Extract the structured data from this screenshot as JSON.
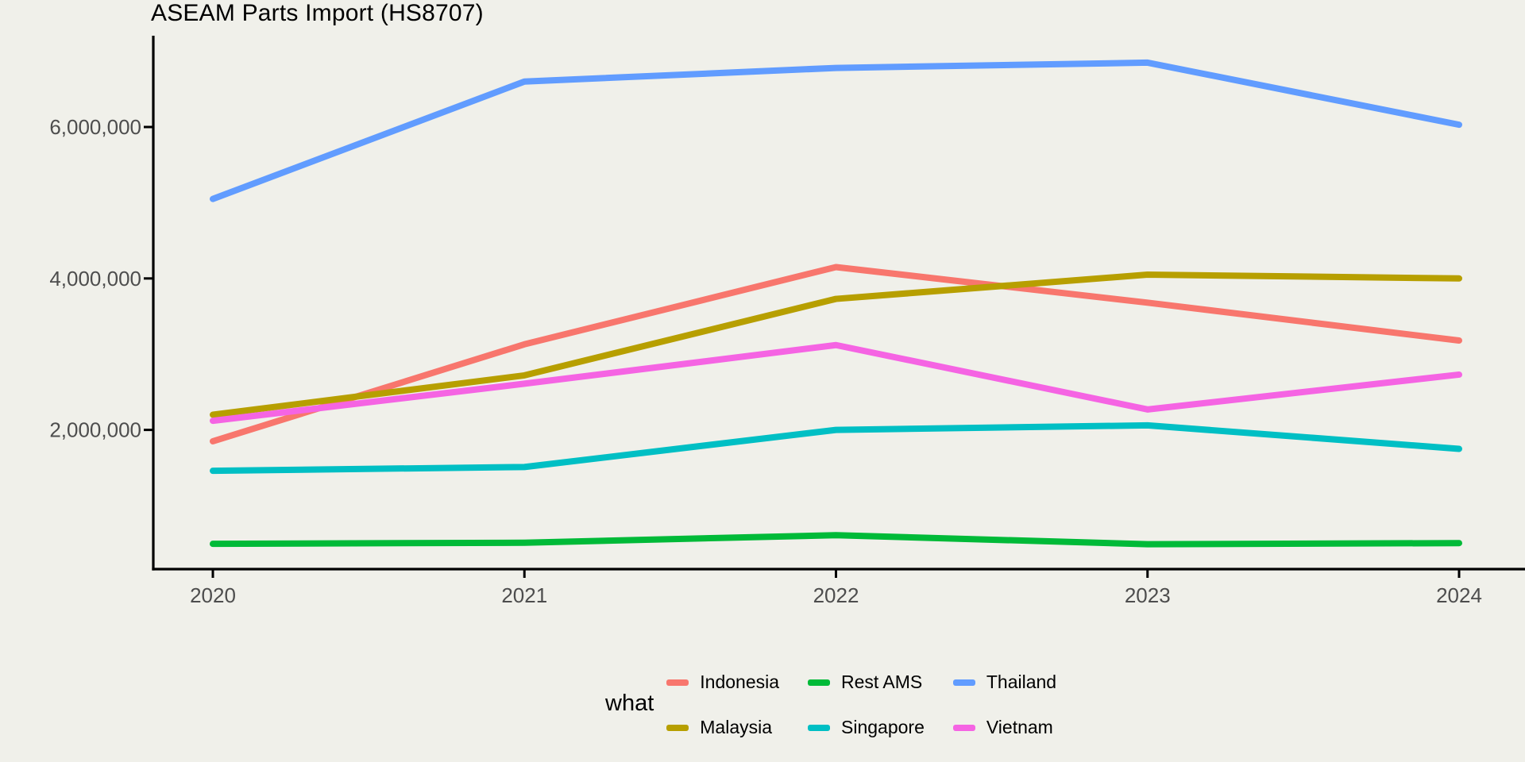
{
  "title": "ASEAM Parts Import (HS8707)",
  "colors": {
    "background": "#F0F0EA",
    "axis_line": "#000000",
    "axis_text": "#4D4D4D"
  },
  "axis": {
    "x_tick_labels": [
      "2020",
      "2021",
      "2022",
      "2023",
      "2024"
    ],
    "y_tick_labels": [
      "2,000,000",
      "4,000,000",
      "6,000,000"
    ],
    "y_tick_values": [
      2000000,
      4000000,
      6000000
    ]
  },
  "legend": {
    "title": "what",
    "position": "bottom"
  },
  "chart_data": {
    "type": "line",
    "title": "ASEAM Parts Import (HS8707)",
    "xlabel": "",
    "ylabel": "",
    "legend_title": "what",
    "legend_position": "bottom",
    "grid": false,
    "x": [
      2020,
      2021,
      2022,
      2023,
      2024
    ],
    "xlim": [
      2020,
      2024
    ],
    "ylim": [
      160000,
      7200000
    ],
    "y_ticks": [
      2000000,
      4000000,
      6000000
    ],
    "series": [
      {
        "name": "Indonesia",
        "color": "#F8766D",
        "values": [
          1850000,
          3130000,
          4150000,
          3680000,
          3180000
        ]
      },
      {
        "name": "Malaysia",
        "color": "#B79F00",
        "values": [
          2200000,
          2720000,
          3730000,
          4050000,
          4000000
        ]
      },
      {
        "name": "Rest AMS",
        "color": "#00BA38",
        "values": [
          495000,
          510000,
          610000,
          490000,
          505000
        ]
      },
      {
        "name": "Singapore",
        "color": "#00BFC4",
        "values": [
          1460000,
          1510000,
          2000000,
          2060000,
          1750000
        ]
      },
      {
        "name": "Thailand",
        "color": "#619CFF",
        "values": [
          5050000,
          6600000,
          6780000,
          6850000,
          6030000
        ]
      },
      {
        "name": "Vietnam",
        "color": "#F564E3",
        "values": [
          2120000,
          2610000,
          3120000,
          2270000,
          2730000
        ]
      }
    ]
  }
}
